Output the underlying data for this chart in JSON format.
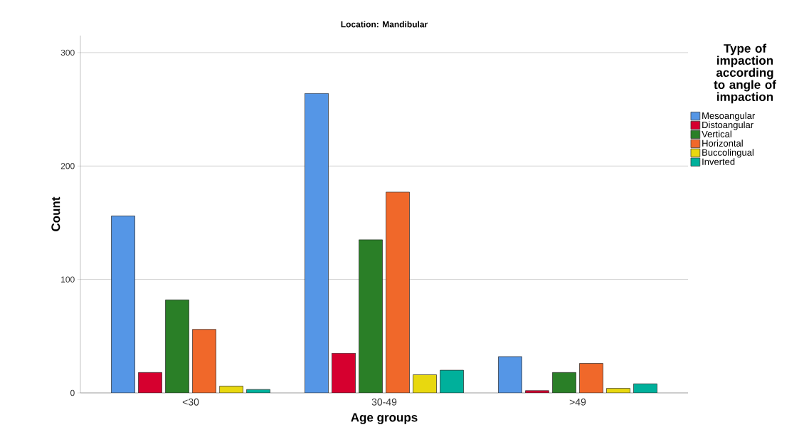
{
  "chart_data": {
    "type": "bar",
    "title": "Location: Mandibular",
    "xlabel": "Age groups",
    "ylabel": "Count",
    "legend_title": "Type of impaction according to angle of impaction",
    "categories": [
      "<30",
      "30-49",
      ">49"
    ],
    "series": [
      {
        "name": "Mesoangular",
        "color": "#5596e6",
        "values": [
          156,
          264,
          32
        ]
      },
      {
        "name": "Distoangular",
        "color": "#d6002f",
        "values": [
          18,
          35,
          2
        ]
      },
      {
        "name": "Vertical",
        "color": "#2a7f27",
        "values": [
          82,
          135,
          18
        ]
      },
      {
        "name": "Horizontal",
        "color": "#f0682a",
        "values": [
          56,
          177,
          26
        ]
      },
      {
        "name": "Buccolingual",
        "color": "#e8d80f",
        "values": [
          6,
          16,
          4
        ]
      },
      {
        "name": "Inverted",
        "color": "#00b09b",
        "values": [
          3,
          20,
          8
        ]
      }
    ],
    "ylim": [
      0,
      315
    ],
    "yticks": [
      0,
      100,
      200,
      300
    ],
    "grid": "y",
    "legend": "right"
  }
}
